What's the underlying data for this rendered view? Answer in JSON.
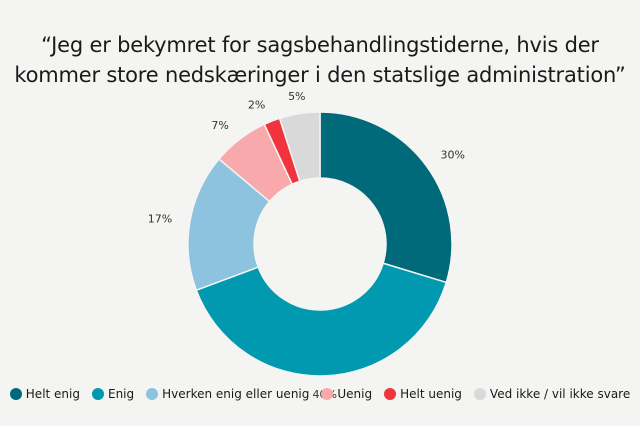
{
  "title": {
    "line1": "“Jeg er bekymret for sagsbehandlingstiderne, hvis der",
    "line2": "kommer store nedskæringer i den statslige administration”"
  },
  "chart_data": {
    "type": "pie",
    "donut": true,
    "labels": [
      "Helt enig",
      "Enig",
      "Hverken enig eller uenig",
      "Uenig",
      "Helt uenig",
      "Ved ikke / vil ikke svare"
    ],
    "values": [
      30,
      40,
      17,
      7,
      2,
      5
    ],
    "value_labels": [
      "30%",
      "40%",
      "17%",
      "7%",
      "2%",
      "5%"
    ],
    "colors": [
      "#00697a",
      "#0099b0",
      "#8dc3de",
      "#f8a9ab",
      "#f0333c",
      "#d9d9d9"
    ],
    "legend_position": "bottom"
  }
}
